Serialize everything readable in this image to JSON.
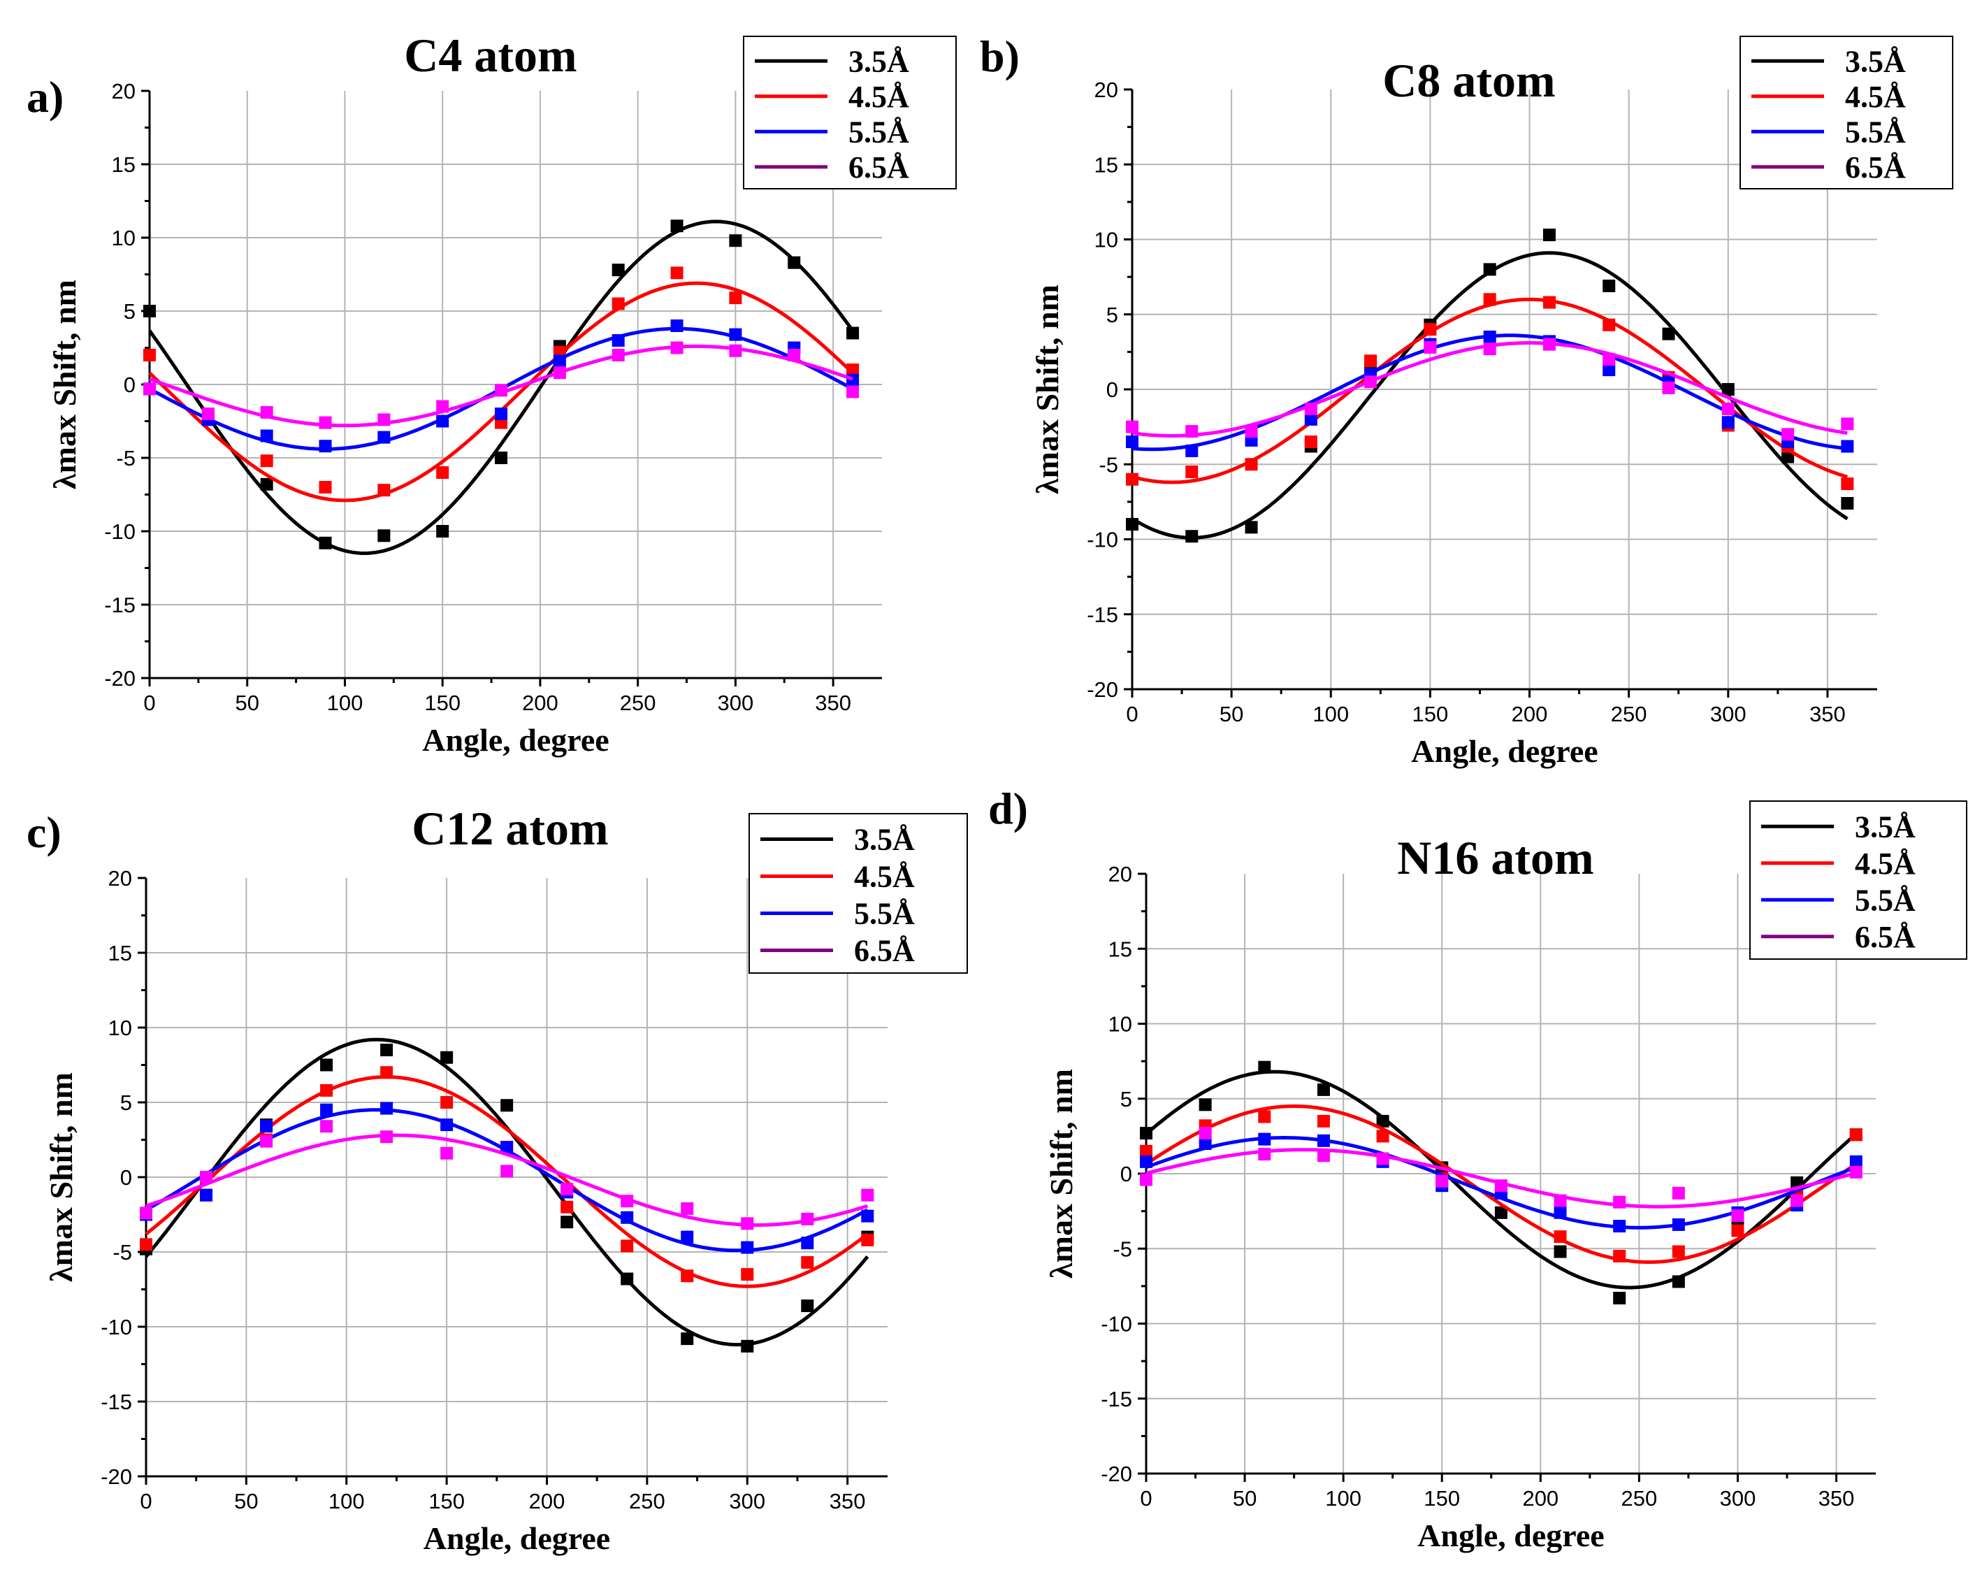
{
  "chart_data": [
    {
      "panel_label": "a)",
      "type": "scatter",
      "title": "C4 atom",
      "xlabel": "Angle, degree",
      "ylabel": "λmax Shift, nm",
      "xlim": [
        0,
        375
      ],
      "ylim": [
        -20,
        20
      ],
      "xticks": [
        0,
        50,
        100,
        150,
        200,
        250,
        300,
        350
      ],
      "yticks": [
        -20,
        -15,
        -10,
        -5,
        0,
        5,
        10,
        15,
        20
      ],
      "legend_position": "top-right",
      "grid": true,
      "x": [
        0,
        30,
        60,
        90,
        120,
        150,
        180,
        210,
        240,
        270,
        300,
        330,
        360
      ],
      "series": [
        {
          "name": "3.5Å",
          "color": "#000000",
          "point_color": "#000000",
          "values": [
            5.0,
            -2.3,
            -6.8,
            -10.8,
            -10.3,
            -10.0,
            -5.0,
            2.6,
            7.8,
            10.8,
            9.8,
            8.3,
            3.5
          ],
          "fit": {
            "amplitude": 11.3,
            "peak_angle": 290,
            "offset": -0.2
          }
        },
        {
          "name": "4.5Å",
          "color": "#ff0000",
          "point_color": "#ff0000",
          "values": [
            2.0,
            -2.3,
            -5.2,
            -7.0,
            -7.2,
            -6.0,
            -2.6,
            2.2,
            5.5,
            7.6,
            5.9,
            2.5,
            1.0
          ],
          "fit": {
            "amplitude": 7.4,
            "peak_angle": 280,
            "offset": -0.5
          }
        },
        {
          "name": "5.5Å",
          "color": "#0000ff",
          "point_color": "#0000ff",
          "values": [
            -0.3,
            -2.4,
            -3.5,
            -4.2,
            -3.6,
            -2.5,
            -2.0,
            1.6,
            3.0,
            4.0,
            3.4,
            2.5,
            0.3
          ],
          "fit": {
            "amplitude": 4.1,
            "peak_angle": 270,
            "offset": -0.3
          }
        },
        {
          "name": "6.5Å",
          "color": "#800080",
          "point_color": "#ff00ff",
          "values": [
            -0.3,
            -2.0,
            -1.9,
            -2.6,
            -2.4,
            -1.5,
            -0.4,
            0.8,
            2.0,
            2.5,
            2.3,
            2.0,
            -0.5
          ],
          "fit": {
            "amplitude": 2.7,
            "peak_angle": 280,
            "offset": -0.1
          }
        }
      ]
    },
    {
      "panel_label": "b)",
      "type": "scatter",
      "title": "C8 atom",
      "xlabel": "Angle, degree",
      "ylabel": "λmax Shift, nm",
      "xlim": [
        0,
        375
      ],
      "ylim": [
        -20,
        20
      ],
      "xticks": [
        0,
        50,
        100,
        150,
        200,
        250,
        300,
        350
      ],
      "yticks": [
        -20,
        -15,
        -10,
        -5,
        0,
        5,
        10,
        15,
        20
      ],
      "legend_position": "top-right",
      "grid": true,
      "x": [
        0,
        30,
        60,
        90,
        120,
        150,
        180,
        210,
        240,
        270,
        300,
        330,
        360
      ],
      "series": [
        {
          "name": "3.5Å",
          "color": "#000000",
          "point_color": "#000000",
          "values": [
            -9.0,
            -9.8,
            -9.2,
            -3.8,
            1.5,
            4.3,
            8.0,
            10.3,
            6.9,
            3.7,
            0.0,
            -4.5,
            -7.6
          ],
          "fit": {
            "amplitude": 9.5,
            "peak_angle": 210,
            "offset": -0.4
          }
        },
        {
          "name": "4.5Å",
          "color": "#ff0000",
          "point_color": "#ff0000",
          "values": [
            -6.0,
            -5.5,
            -5.0,
            -3.5,
            1.9,
            4.0,
            6.0,
            5.8,
            4.3,
            0.8,
            -2.4,
            -3.8,
            -6.3
          ],
          "fit": {
            "amplitude": 6.1,
            "peak_angle": 200,
            "offset": -0.1
          }
        },
        {
          "name": "5.5Å",
          "color": "#0000ff",
          "point_color": "#0000ff",
          "values": [
            -3.5,
            -4.1,
            -3.4,
            -2.0,
            1.0,
            3.0,
            3.5,
            3.2,
            1.3,
            0.5,
            -2.2,
            -3.5,
            -3.8
          ],
          "fit": {
            "amplitude": 3.8,
            "peak_angle": 190,
            "offset": -0.2
          }
        },
        {
          "name": "6.5Å",
          "color": "#800080",
          "point_color": "#ff00ff",
          "values": [
            -2.5,
            -2.8,
            -2.8,
            -1.3,
            0.5,
            2.8,
            2.7,
            3.0,
            2.0,
            0.1,
            -1.3,
            -3.0,
            -2.3
          ],
          "fit": {
            "amplitude": 3.1,
            "peak_angle": 200,
            "offset": 0.0
          }
        }
      ]
    },
    {
      "panel_label": "c)",
      "type": "scatter",
      "title": "C12 atom",
      "xlabel": "Angle, degree",
      "ylabel": "λmax Shift, nm",
      "xlim": [
        0,
        370
      ],
      "ylim": [
        -20,
        20
      ],
      "xticks": [
        0,
        50,
        100,
        150,
        200,
        250,
        300,
        350
      ],
      "yticks": [
        -20,
        -15,
        -10,
        -5,
        0,
        5,
        10,
        15,
        20
      ],
      "legend_position": "top-right",
      "grid": true,
      "x": [
        0,
        30,
        60,
        90,
        120,
        150,
        180,
        210,
        240,
        270,
        300,
        330,
        360
      ],
      "series": [
        {
          "name": "3.5Å",
          "color": "#000000",
          "point_color": "#000000",
          "values": [
            -4.8,
            -1.2,
            3.5,
            7.5,
            8.5,
            8.0,
            4.8,
            -3.0,
            -6.8,
            -10.8,
            -11.3,
            -8.6,
            -4.0
          ],
          "fit": {
            "amplitude": 10.2,
            "peak_angle": 115,
            "offset": -1.0
          }
        },
        {
          "name": "4.5Å",
          "color": "#ff0000",
          "point_color": "#ff0000",
          "values": [
            -4.5,
            0.0,
            2.5,
            5.8,
            7.0,
            5.0,
            2.0,
            -2.0,
            -4.6,
            -6.6,
            -6.5,
            -5.7,
            -4.2
          ],
          "fit": {
            "amplitude": 7.0,
            "peak_angle": 120,
            "offset": -0.3
          }
        },
        {
          "name": "5.5Å",
          "color": "#0000ff",
          "point_color": "#0000ff",
          "values": [
            -2.5,
            -1.2,
            3.4,
            4.5,
            4.6,
            3.5,
            2.0,
            -1.0,
            -2.7,
            -4.0,
            -4.7,
            -4.4,
            -2.6
          ],
          "fit": {
            "amplitude": 4.7,
            "peak_angle": 115,
            "offset": -0.2
          }
        },
        {
          "name": "6.5Å",
          "color": "#800080",
          "point_color": "#ff00ff",
          "values": [
            -2.4,
            0.0,
            2.4,
            3.4,
            2.7,
            1.6,
            0.4,
            -0.8,
            -1.6,
            -2.1,
            -3.1,
            -2.8,
            -1.2
          ],
          "fit": {
            "amplitude": 3.0,
            "peak_angle": 125,
            "offset": -0.2
          }
        }
      ]
    },
    {
      "panel_label": "d)",
      "type": "scatter",
      "title": "N16 atom",
      "xlabel": "Angle, degree",
      "ylabel": "λmax Shift, nm",
      "xlim": [
        0,
        370
      ],
      "ylim": [
        -20,
        20
      ],
      "xticks": [
        0,
        50,
        100,
        150,
        200,
        250,
        300,
        350
      ],
      "yticks": [
        -20,
        -15,
        -10,
        -5,
        0,
        5,
        10,
        15,
        20
      ],
      "legend_position": "top-right",
      "grid": true,
      "x": [
        0,
        30,
        60,
        90,
        120,
        150,
        180,
        210,
        240,
        270,
        300,
        330,
        360
      ],
      "series": [
        {
          "name": "3.5Å",
          "color": "#000000",
          "point_color": "#000000",
          "values": [
            2.7,
            4.6,
            7.1,
            5.6,
            3.5,
            0.4,
            -2.6,
            -5.2,
            -8.3,
            -7.2,
            -3.6,
            -0.6,
            2.6
          ],
          "fit": {
            "amplitude": 7.2,
            "peak_angle": 65,
            "offset": -0.4
          }
        },
        {
          "name": "4.5Å",
          "color": "#ff0000",
          "point_color": "#ff0000",
          "values": [
            1.5,
            3.2,
            3.8,
            3.5,
            2.5,
            -0.3,
            -1.3,
            -4.2,
            -5.5,
            -5.2,
            -3.8,
            -1.5,
            2.6
          ],
          "fit": {
            "amplitude": 5.2,
            "peak_angle": 75,
            "offset": -0.7
          }
        },
        {
          "name": "5.5Å",
          "color": "#0000ff",
          "point_color": "#0000ff",
          "values": [
            0.8,
            2.0,
            2.3,
            2.2,
            0.8,
            -0.8,
            -1.3,
            -2.6,
            -3.5,
            -3.4,
            -2.6,
            -2.1,
            0.8
          ],
          "fit": {
            "amplitude": 3.0,
            "peak_angle": 70,
            "offset": -0.6
          }
        },
        {
          "name": "6.5Å",
          "color": "#800080",
          "point_color": "#ff00ff",
          "values": [
            -0.4,
            2.7,
            1.3,
            1.2,
            1.0,
            -0.5,
            -0.8,
            -1.8,
            -1.9,
            -1.3,
            -2.8,
            -1.8,
            0.1
          ],
          "fit": {
            "amplitude": 1.9,
            "peak_angle": 80,
            "offset": -0.3
          }
        }
      ]
    }
  ]
}
